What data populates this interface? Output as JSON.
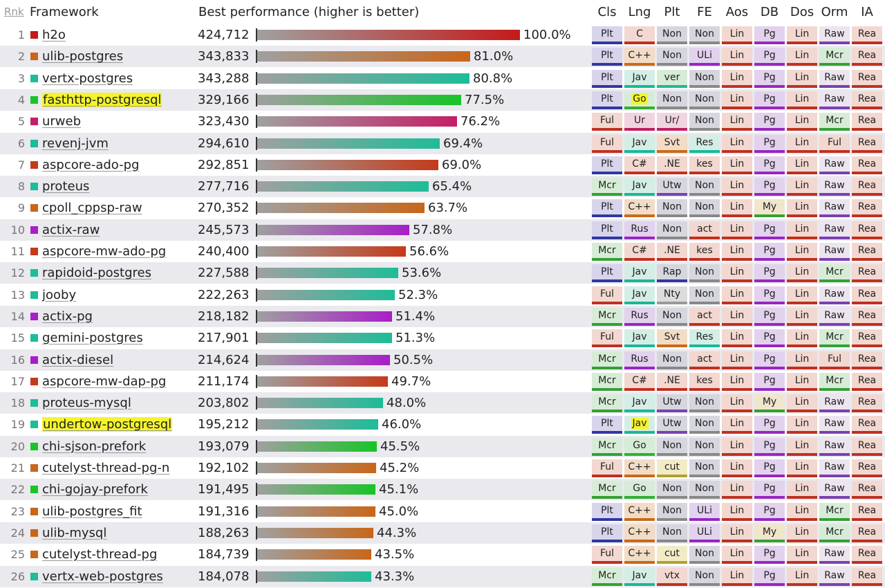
{
  "headers": {
    "rank": "Rnk",
    "framework": "Framework",
    "performance": "Best performance (higher is better)",
    "attrs": [
      "Cls",
      "Lng",
      "Plt",
      "FE",
      "Aos",
      "DB",
      "Dos",
      "Orm",
      "IA"
    ]
  },
  "colors": {
    "bar_start": "#a0a0a0",
    "row_odd": "#ffffff",
    "row_even": "#e9e9ee",
    "highlight": "#f4f42c",
    "tags": {
      "Plt": {
        "bg": "#d8d4ec",
        "border": "#3038a0"
      },
      "Ful": {
        "bg": "#f2d8d0",
        "border": "#c03020"
      },
      "Mcr": {
        "bg": "#d6ecd6",
        "border": "#34a034"
      },
      "C": {
        "bg": "#f2d8d0",
        "border": "#c03020"
      },
      "C++": {
        "bg": "#f2dcc6",
        "border": "#c86a18"
      },
      "Jav": {
        "bg": "#d4eee6",
        "border": "#18b896"
      },
      "Go": {
        "bg": "#d6ecd6",
        "border": "#30b030"
      },
      "Ur": {
        "bg": "#f0d4e0",
        "border": "#c01e60"
      },
      "C#": {
        "bg": "#f2d8d0",
        "border": "#c03020"
      },
      "Rus": {
        "bg": "#e2d2ee",
        "border": "#9826c0"
      },
      "Non": {
        "bg": "#d6d6de",
        "border": "#888888"
      },
      "ver": {
        "bg": "#d6ecd6",
        "border": "#1eb896"
      },
      "Ur/": {
        "bg": "#f0d4e0",
        "border": "#c01e60"
      },
      "Svt": {
        "bg": "#f2dcc6",
        "border": "#c86a18"
      },
      ".NE": {
        "bg": "#f2d8d0",
        "border": "#c03020"
      },
      "Utw": {
        "bg": "#d6d6de",
        "border": "#7a40b0"
      },
      "Rap": {
        "bg": "#d6d6de",
        "border": "#3038a0"
      },
      "Nty": {
        "bg": "#dcdcdc",
        "border": "#999999"
      },
      "cut": {
        "bg": "#f2ecc6",
        "border": "#b0a030"
      },
      "vtx": {
        "bg": "#f2d8d0",
        "border": "#c03020"
      },
      "ULi": {
        "bg": "#e2d2ee",
        "border": "#9826c0"
      },
      "Res": {
        "bg": "#d4eee6",
        "border": "#18b896"
      },
      "kes": {
        "bg": "#f2d8d0",
        "border": "#c03020"
      },
      "act": {
        "bg": "#f2d8d0",
        "border": "#c03020"
      },
      "Lin": {
        "bg": "#f2d8d0",
        "border": "#c03020"
      },
      "Pg": {
        "bg": "#e2d2ee",
        "border": "#9826c0"
      },
      "My": {
        "bg": "#f0e6cc",
        "border": "#34a034"
      },
      "Raw": {
        "bg": "#ece4ee",
        "border": "#7a40b0"
      },
      "Mcr_orm": {
        "bg": "#d6ecd6",
        "border": "#34a034"
      },
      "Ful_orm": {
        "bg": "#f2d8d0",
        "border": "#c03020"
      },
      "Rea": {
        "bg": "#f2d8d0",
        "border": "#c03020"
      }
    }
  },
  "chart_data": {
    "type": "bar",
    "title": "",
    "value_label": "Best performance (higher is better)",
    "max_value": 424712,
    "rows": [
      {
        "rank": "1",
        "name": "h2o",
        "value": 424712,
        "value_text": "424,712",
        "pct": "100.0%",
        "color": "#c41a1a",
        "attrs": [
          "Plt",
          "C",
          "Non",
          "Non",
          "Lin",
          "Pg",
          "Lin",
          "Raw",
          "Rea"
        ]
      },
      {
        "rank": "2",
        "name": "ulib-postgres",
        "value": 343833,
        "value_text": "343,833",
        "pct": "81.0%",
        "color": "#c8661a",
        "attrs": [
          "Plt",
          "C++",
          "Non",
          "ULi",
          "Lin",
          "Pg",
          "Lin",
          "Mcr",
          "Rea"
        ]
      },
      {
        "rank": "3",
        "name": "vertx-postgres",
        "value": 343288,
        "value_text": "343,288",
        "pct": "80.8%",
        "color": "#1ebc98",
        "attrs": [
          "Plt",
          "Jav",
          "ver",
          "Non",
          "Lin",
          "Pg",
          "Lin",
          "Raw",
          "Rea"
        ]
      },
      {
        "rank": "4",
        "name": "fasthttp-postgresql",
        "value": 329166,
        "value_text": "329,166",
        "pct": "77.5%",
        "color": "#18c428",
        "highlight_name": true,
        "highlight_attr": 1,
        "attrs": [
          "Plt",
          "Go",
          "Non",
          "Non",
          "Lin",
          "Pg",
          "Lin",
          "Raw",
          "Rea"
        ]
      },
      {
        "rank": "5",
        "name": "urweb",
        "value": 323430,
        "value_text": "323,430",
        "pct": "76.2%",
        "color": "#c41e66",
        "attrs": [
          "Ful",
          "Ur",
          "Ur/",
          "Non",
          "Lin",
          "Pg",
          "Lin",
          "Mcr",
          "Rea"
        ]
      },
      {
        "rank": "6",
        "name": "revenj-jvm",
        "value": 294610,
        "value_text": "294,610",
        "pct": "69.4%",
        "color": "#1ebc98",
        "attrs": [
          "Ful",
          "Jav",
          "Svt",
          "Res",
          "Lin",
          "Pg",
          "Lin",
          "Ful",
          "Rea"
        ]
      },
      {
        "rank": "7",
        "name": "aspcore-ado-pg",
        "value": 292851,
        "value_text": "292,851",
        "pct": "69.0%",
        "color": "#c43a1a",
        "attrs": [
          "Plt",
          "C#",
          ".NE",
          "kes",
          "Lin",
          "Pg",
          "Lin",
          "Raw",
          "Rea"
        ]
      },
      {
        "rank": "8",
        "name": "proteus",
        "value": 277716,
        "value_text": "277,716",
        "pct": "65.4%",
        "color": "#1ebc98",
        "attrs": [
          "Mcr",
          "Jav",
          "Utw",
          "Non",
          "Lin",
          "Pg",
          "Lin",
          "Raw",
          "Rea"
        ]
      },
      {
        "rank": "9",
        "name": "cpoll_cppsp-raw",
        "value": 270352,
        "value_text": "270,352",
        "pct": "63.7%",
        "color": "#c8661a",
        "attrs": [
          "Plt",
          "C++",
          "Non",
          "Non",
          "Lin",
          "My",
          "Lin",
          "Raw",
          "Rea"
        ]
      },
      {
        "rank": "10",
        "name": "actix-raw",
        "value": 245573,
        "value_text": "245,573",
        "pct": "57.8%",
        "color": "#a81ec8",
        "attrs": [
          "Plt",
          "Rus",
          "Non",
          "act",
          "Lin",
          "Pg",
          "Lin",
          "Raw",
          "Rea"
        ]
      },
      {
        "rank": "11",
        "name": "aspcore-mw-ado-pg",
        "value": 240400,
        "value_text": "240,400",
        "pct": "56.6%",
        "color": "#c43a1a",
        "attrs": [
          "Mcr",
          "C#",
          ".NE",
          "kes",
          "Lin",
          "Pg",
          "Lin",
          "Raw",
          "Rea"
        ]
      },
      {
        "rank": "12",
        "name": "rapidoid-postgres",
        "value": 227588,
        "value_text": "227,588",
        "pct": "53.6%",
        "color": "#1ebc98",
        "attrs": [
          "Plt",
          "Jav",
          "Rap",
          "Non",
          "Lin",
          "Pg",
          "Lin",
          "Mcr",
          "Rea"
        ]
      },
      {
        "rank": "13",
        "name": "jooby",
        "value": 222263,
        "value_text": "222,263",
        "pct": "52.3%",
        "color": "#1ebc98",
        "attrs": [
          "Ful",
          "Jav",
          "Nty",
          "Non",
          "Lin",
          "Pg",
          "Lin",
          "Raw",
          "Rea"
        ]
      },
      {
        "rank": "14",
        "name": "actix-pg",
        "value": 218182,
        "value_text": "218,182",
        "pct": "51.4%",
        "color": "#a81ec8",
        "attrs": [
          "Mcr",
          "Rus",
          "Non",
          "act",
          "Lin",
          "Pg",
          "Lin",
          "Raw",
          "Rea"
        ]
      },
      {
        "rank": "15",
        "name": "gemini-postgres",
        "value": 217901,
        "value_text": "217,901",
        "pct": "51.3%",
        "color": "#1ebc98",
        "attrs": [
          "Ful",
          "Jav",
          "Svt",
          "Res",
          "Lin",
          "Pg",
          "Lin",
          "Mcr",
          "Rea"
        ]
      },
      {
        "rank": "16",
        "name": "actix-diesel",
        "value": 214624,
        "value_text": "214,624",
        "pct": "50.5%",
        "color": "#a81ec8",
        "attrs": [
          "Mcr",
          "Rus",
          "Non",
          "act",
          "Lin",
          "Pg",
          "Lin",
          "Ful",
          "Rea"
        ]
      },
      {
        "rank": "17",
        "name": "aspcore-mw-dap-pg",
        "value": 211174,
        "value_text": "211,174",
        "pct": "49.7%",
        "color": "#c43a1a",
        "attrs": [
          "Mcr",
          "C#",
          ".NE",
          "kes",
          "Lin",
          "Pg",
          "Lin",
          "Mcr",
          "Rea"
        ]
      },
      {
        "rank": "18",
        "name": "proteus-mysql",
        "value": 203802,
        "value_text": "203,802",
        "pct": "48.0%",
        "color": "#1ebc98",
        "attrs": [
          "Mcr",
          "Jav",
          "Utw",
          "Non",
          "Lin",
          "My",
          "Lin",
          "Raw",
          "Rea"
        ]
      },
      {
        "rank": "19",
        "name": "undertow-postgresql",
        "value": 195212,
        "value_text": "195,212",
        "pct": "46.0%",
        "color": "#1ebc98",
        "highlight_name": true,
        "highlight_attr": 1,
        "attrs": [
          "Plt",
          "Jav",
          "Utw",
          "Non",
          "Lin",
          "Pg",
          "Lin",
          "Raw",
          "Rea"
        ]
      },
      {
        "rank": "20",
        "name": "chi-sjson-prefork",
        "value": 193079,
        "value_text": "193,079",
        "pct": "45.5%",
        "color": "#18c428",
        "attrs": [
          "Mcr",
          "Go",
          "Non",
          "Non",
          "Lin",
          "Pg",
          "Lin",
          "Raw",
          "Rea"
        ]
      },
      {
        "rank": "21",
        "name": "cutelyst-thread-pg-n",
        "value": 192102,
        "value_text": "192,102",
        "pct": "45.2%",
        "color": "#c8661a",
        "attrs": [
          "Ful",
          "C++",
          "cut",
          "Non",
          "Lin",
          "Pg",
          "Lin",
          "Raw",
          "Rea"
        ]
      },
      {
        "rank": "22",
        "name": "chi-gojay-prefork",
        "value": 191495,
        "value_text": "191,495",
        "pct": "45.1%",
        "color": "#18c428",
        "attrs": [
          "Mcr",
          "Go",
          "Non",
          "Non",
          "Lin",
          "Pg",
          "Lin",
          "Raw",
          "Rea"
        ]
      },
      {
        "rank": "23",
        "name": "ulib-postgres_fit",
        "value": 191316,
        "value_text": "191,316",
        "pct": "45.0%",
        "color": "#c8661a",
        "attrs": [
          "Plt",
          "C++",
          "Non",
          "ULi",
          "Lin",
          "Pg",
          "Lin",
          "Mcr",
          "Rea"
        ]
      },
      {
        "rank": "24",
        "name": "ulib-mysql",
        "value": 188263,
        "value_text": "188,263",
        "pct": "44.3%",
        "color": "#c8661a",
        "attrs": [
          "Plt",
          "C++",
          "Non",
          "ULi",
          "Lin",
          "My",
          "Lin",
          "Mcr",
          "Rea"
        ]
      },
      {
        "rank": "25",
        "name": "cutelyst-thread-pg",
        "value": 184739,
        "value_text": "184,739",
        "pct": "43.5%",
        "color": "#c8661a",
        "attrs": [
          "Ful",
          "C++",
          "cut",
          "Non",
          "Lin",
          "Pg",
          "Lin",
          "Raw",
          "Rea"
        ]
      },
      {
        "rank": "26",
        "name": "vertx-web-postgres",
        "value": 184078,
        "value_text": "184,078",
        "pct": "43.3%",
        "color": "#1ebc98",
        "attrs": [
          "Mcr",
          "Jav",
          "vtx",
          "Non",
          "Lin",
          "Pg",
          "Lin",
          "Raw",
          "Rea"
        ]
      }
    ]
  }
}
